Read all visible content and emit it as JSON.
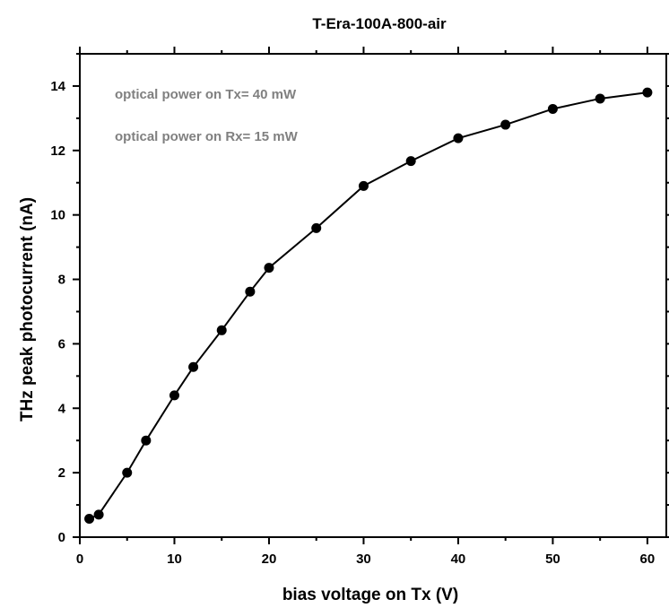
{
  "chart_data": {
    "type": "line",
    "title": "T-Era-100A-800-air",
    "xlabel": "bias voltage on Tx (V)",
    "ylabel": "THz peak photocurrent (nA)",
    "xlim": [
      0,
      62
    ],
    "ylim": [
      0,
      15
    ],
    "x_ticks": [
      0,
      10,
      20,
      30,
      40,
      50,
      60
    ],
    "y_ticks": [
      0,
      2,
      4,
      6,
      8,
      10,
      12,
      14
    ],
    "grid": false,
    "legend": "none",
    "annotations": [
      "optical power on Tx= 40 mW",
      "optical power on Rx= 15 mW"
    ],
    "series": [
      {
        "color": "#000000",
        "marker": "circle",
        "x": [
          1,
          2,
          5,
          7,
          10,
          12,
          15,
          18,
          20,
          25,
          30,
          35,
          40,
          45,
          50,
          55,
          60
        ],
        "y": [
          0.57,
          0.7,
          2.0,
          3.0,
          4.4,
          5.28,
          6.42,
          7.62,
          8.36,
          9.59,
          10.9,
          11.67,
          12.38,
          12.8,
          13.29,
          13.61,
          13.8
        ]
      }
    ]
  }
}
